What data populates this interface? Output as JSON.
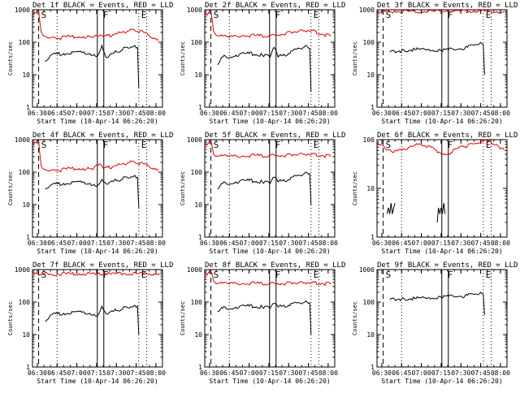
{
  "chart_data": [
    {
      "type": "line",
      "title": "Det 1f BLACK = Events, RED = LLD",
      "xlabel": "Start Time (10-Apr-14 06:26:20)",
      "ylabel": "Counts/sec",
      "y_scale": "log",
      "ylim": [
        1,
        1000
      ],
      "xticks": [
        "06:30",
        "06:45",
        "07:00",
        "07:15",
        "07:30",
        "07:45",
        "08:00"
      ],
      "xlim": [
        "06:26:20",
        "08:05:00"
      ],
      "grid": false,
      "legend": "none",
      "markers": [
        {
          "label": "S",
          "time": "06:31"
        },
        {
          "label": "F",
          "time": "07:18"
        },
        {
          "label": "E",
          "time": "07:47"
        }
      ],
      "series": [
        {
          "name": "LLD",
          "color": "#dd0000",
          "x": [
            "06:26:20",
            "06:29",
            "06:31",
            "06:33",
            "06:36",
            "06:45",
            "06:55",
            "07:05",
            "07:12",
            "07:17",
            "07:20",
            "07:28",
            "07:40",
            "07:48",
            "07:55",
            "08:02"
          ],
          "values": [
            700,
            800,
            900,
            200,
            150,
            130,
            150,
            150,
            140,
            160,
            150,
            170,
            230,
            220,
            160,
            120
          ]
        },
        {
          "name": "Events",
          "color": "#000000",
          "x": [
            "06:36",
            "06:40",
            "06:50",
            "07:00",
            "07:10",
            "07:16",
            "07:19",
            "07:22",
            "07:30",
            "07:38",
            "07:44",
            "07:46",
            "07:47"
          ],
          "values": [
            25,
            40,
            45,
            50,
            45,
            40,
            80,
            35,
            50,
            70,
            80,
            70,
            4
          ]
        }
      ]
    },
    {
      "type": "line",
      "title": "Det 2f BLACK = Events, RED = LLD",
      "xlabel": "Start Time (10-Apr-14 06:26:20)",
      "ylabel": "Counts/sec",
      "y_scale": "log",
      "ylim": [
        1,
        1000
      ],
      "xticks": [
        "06:30",
        "06:45",
        "07:00",
        "07:15",
        "07:30",
        "07:45",
        "08:00"
      ],
      "xlim": [
        "06:26:20",
        "08:05:00"
      ],
      "grid": false,
      "legend": "none",
      "markers": [
        {
          "label": "S",
          "time": "06:31"
        },
        {
          "label": "F",
          "time": "07:18"
        },
        {
          "label": "E",
          "time": "07:47"
        }
      ],
      "series": [
        {
          "name": "LLD",
          "color": "#dd0000",
          "x": [
            "06:26:20",
            "06:29",
            "06:31",
            "06:33",
            "06:36",
            "06:45",
            "06:55",
            "07:05",
            "07:12",
            "07:17",
            "07:20",
            "07:28",
            "07:40",
            "07:48",
            "07:55",
            "08:02"
          ],
          "values": [
            700,
            800,
            900,
            220,
            160,
            140,
            160,
            160,
            150,
            170,
            160,
            190,
            240,
            230,
            180,
            150
          ]
        },
        {
          "name": "Events",
          "color": "#000000",
          "x": [
            "06:36",
            "06:40",
            "06:50",
            "07:00",
            "07:10",
            "07:16",
            "07:19",
            "07:22",
            "07:30",
            "07:38",
            "07:44",
            "07:46",
            "07:47"
          ],
          "values": [
            20,
            35,
            40,
            45,
            40,
            35,
            70,
            35,
            45,
            65,
            75,
            65,
            3
          ]
        }
      ]
    },
    {
      "type": "line",
      "title": "Det 3f BLACK = Events, RED = LLD",
      "xlabel": "Start Time (10-Apr-14 06:26:20)",
      "ylabel": "Counts/sec",
      "y_scale": "log",
      "ylim": [
        1,
        1000
      ],
      "xticks": [
        "06:30",
        "06:45",
        "07:00",
        "07:15",
        "07:30",
        "07:45",
        "08:00"
      ],
      "xlim": [
        "06:26:20",
        "08:05:00"
      ],
      "grid": false,
      "legend": "none",
      "markers": [
        {
          "label": "S",
          "time": "06:31"
        },
        {
          "label": "F",
          "time": "07:18"
        },
        {
          "label": "E",
          "time": "07:47"
        }
      ],
      "series": [
        {
          "name": "LLD",
          "color": "#dd0000",
          "x": [
            "06:26:20",
            "06:30",
            "06:40",
            "06:50",
            "07:00",
            "07:10",
            "07:20",
            "07:30",
            "07:40",
            "07:50",
            "08:00",
            "08:03"
          ],
          "values": [
            900,
            850,
            900,
            880,
            900,
            890,
            910,
            900,
            920,
            900,
            890,
            880
          ]
        },
        {
          "name": "Events",
          "color": "#000000",
          "x": [
            "06:36",
            "06:45",
            "06:55",
            "07:05",
            "07:15",
            "07:18",
            "07:25",
            "07:35",
            "07:44",
            "07:47",
            "07:48"
          ],
          "values": [
            50,
            55,
            60,
            60,
            55,
            60,
            58,
            70,
            90,
            85,
            10
          ]
        }
      ]
    },
    {
      "type": "line",
      "title": "Det 4f BLACK = Events, RED = LLD",
      "xlabel": "Start Time (10-Apr-14 06:26:20)",
      "ylabel": "Counts/sec",
      "y_scale": "log",
      "ylim": [
        1,
        1000
      ],
      "xticks": [
        "06:30",
        "06:45",
        "07:00",
        "07:15",
        "07:30",
        "07:45",
        "08:00"
      ],
      "xlim": [
        "06:26:20",
        "08:05:00"
      ],
      "grid": false,
      "legend": "none",
      "markers": [
        {
          "label": "S",
          "time": "06:31"
        },
        {
          "label": "F",
          "time": "07:18"
        },
        {
          "label": "E",
          "time": "07:47"
        }
      ],
      "series": [
        {
          "name": "LLD",
          "color": "#dd0000",
          "x": [
            "06:26:20",
            "06:29",
            "06:31",
            "06:33",
            "06:36",
            "06:45",
            "06:55",
            "07:05",
            "07:12",
            "07:17",
            "07:20",
            "07:28",
            "07:40",
            "07:48",
            "07:55",
            "08:02"
          ],
          "values": [
            700,
            800,
            900,
            150,
            120,
            110,
            130,
            130,
            120,
            180,
            130,
            150,
            200,
            190,
            150,
            120
          ]
        },
        {
          "name": "Events",
          "color": "#000000",
          "x": [
            "06:36",
            "06:40",
            "06:50",
            "07:00",
            "07:10",
            "07:16",
            "07:19",
            "07:22",
            "07:30",
            "07:38",
            "07:44",
            "07:46",
            "07:47"
          ],
          "values": [
            30,
            40,
            45,
            50,
            45,
            40,
            60,
            45,
            55,
            70,
            80,
            70,
            8
          ]
        }
      ]
    },
    {
      "type": "line",
      "title": "Det 5f BLACK = Events, RED = LLD",
      "xlabel": "Start Time (10-Apr-14 06:26:20)",
      "ylabel": "Counts/sec",
      "y_scale": "log",
      "ylim": [
        1,
        1000
      ],
      "xticks": [
        "06:30",
        "06:45",
        "07:00",
        "07:15",
        "07:30",
        "07:45",
        "08:00"
      ],
      "xlim": [
        "06:26:20",
        "08:05:00"
      ],
      "grid": false,
      "legend": "none",
      "markers": [
        {
          "label": "S",
          "time": "06:31"
        },
        {
          "label": "F",
          "time": "07:18"
        },
        {
          "label": "E",
          "time": "07:47"
        }
      ],
      "series": [
        {
          "name": "LLD",
          "color": "#dd0000",
          "x": [
            "06:26:20",
            "06:29",
            "06:31",
            "06:33",
            "06:36",
            "06:45",
            "06:55",
            "07:05",
            "07:12",
            "07:17",
            "07:20",
            "07:28",
            "07:40",
            "07:48",
            "07:55",
            "08:02"
          ],
          "values": [
            700,
            800,
            900,
            350,
            320,
            300,
            310,
            330,
            300,
            350,
            320,
            330,
            380,
            360,
            330,
            300
          ]
        },
        {
          "name": "Events",
          "color": "#000000",
          "x": [
            "06:36",
            "06:40",
            "06:50",
            "07:00",
            "07:10",
            "07:16",
            "07:19",
            "07:22",
            "07:30",
            "07:38",
            "07:44",
            "07:46",
            "07:47"
          ],
          "values": [
            30,
            45,
            50,
            55,
            50,
            45,
            70,
            50,
            60,
            80,
            95,
            90,
            10
          ]
        }
      ]
    },
    {
      "type": "line",
      "title": "Det 6f BLACK = Events, RED = LLD",
      "xlabel": "Start Time (10-Apr-14 06:26:20)",
      "ylabel": "Counts/sec",
      "y_scale": "log",
      "ylim": [
        1,
        100
      ],
      "xticks": [
        "06:30",
        "06:45",
        "07:00",
        "07:15",
        "07:30",
        "07:45",
        "08:00"
      ],
      "xlim": [
        "06:26:20",
        "08:05:00"
      ],
      "grid": false,
      "legend": "none",
      "markers": [
        {
          "label": "S",
          "time": "06:31"
        },
        {
          "label": "F",
          "time": "07:18"
        },
        {
          "label": "E",
          "time": "07:47"
        }
      ],
      "series": [
        {
          "name": "LLD",
          "color": "#dd0000",
          "x": [
            "06:26:20",
            "06:32",
            "06:38",
            "06:45",
            "06:52",
            "07:00",
            "07:07",
            "07:14",
            "07:20",
            "07:27",
            "07:35",
            "07:43",
            "07:50",
            "07:57",
            "08:03"
          ],
          "values": [
            90,
            70,
            55,
            60,
            75,
            80,
            70,
            55,
            50,
            65,
            75,
            85,
            95,
            80,
            60
          ]
        },
        {
          "name": "Events",
          "color": "#000000",
          "x": [
            "06:34",
            "06:35",
            "06:36",
            "06:37",
            "06:38",
            "06:39",
            "06:40"
          ],
          "values": [
            3,
            4,
            3,
            5,
            3,
            4,
            5
          ]
        },
        {
          "name": "Events",
          "color": "#000000",
          "x": [
            "07:12",
            "07:13",
            "07:14",
            "07:15",
            "07:16",
            "07:17",
            "07:18"
          ],
          "values": [
            2,
            4,
            3,
            4,
            3,
            5,
            3
          ]
        }
      ]
    },
    {
      "type": "line",
      "title": "Det 7f BLACK = Events, RED = LLD",
      "xlabel": "Start Time (10-Apr-14 06:26:20)",
      "ylabel": "Counts/sec",
      "y_scale": "log",
      "ylim": [
        1,
        1000
      ],
      "xticks": [
        "06:30",
        "06:45",
        "07:00",
        "07:15",
        "07:30",
        "07:45",
        "08:00"
      ],
      "xlim": [
        "06:26:20",
        "08:05:00"
      ],
      "grid": false,
      "legend": "none",
      "markers": [
        {
          "label": "S",
          "time": "06:31"
        },
        {
          "label": "F",
          "time": "07:18"
        },
        {
          "label": "E",
          "time": "07:47"
        }
      ],
      "series": [
        {
          "name": "LLD",
          "color": "#dd0000",
          "x": [
            "06:26:20",
            "06:35",
            "06:45",
            "06:55",
            "07:05",
            "07:15",
            "07:25",
            "07:35",
            "07:45",
            "07:55",
            "08:03"
          ],
          "values": [
            700,
            750,
            720,
            740,
            750,
            730,
            760,
            740,
            760,
            750,
            740
          ]
        },
        {
          "name": "Events",
          "color": "#000000",
          "x": [
            "06:36",
            "06:40",
            "06:50",
            "07:00",
            "07:10",
            "07:16",
            "07:19",
            "07:22",
            "07:30",
            "07:38",
            "07:44",
            "07:46",
            "07:47"
          ],
          "values": [
            25,
            40,
            45,
            50,
            45,
            40,
            75,
            45,
            55,
            70,
            80,
            75,
            10
          ]
        }
      ]
    },
    {
      "type": "line",
      "title": "Det 8f BLACK = Events, RED = LLD",
      "xlabel": "Start Time (10-Apr-14 06:26:20)",
      "ylabel": "Counts/sec",
      "y_scale": "log",
      "ylim": [
        1,
        1000
      ],
      "xticks": [
        "06:30",
        "06:45",
        "07:00",
        "07:15",
        "07:30",
        "07:45",
        "08:00"
      ],
      "xlim": [
        "06:26:20",
        "08:05:00"
      ],
      "grid": false,
      "legend": "none",
      "markers": [
        {
          "label": "S",
          "time": "06:31"
        },
        {
          "label": "F",
          "time": "07:18"
        },
        {
          "label": "E",
          "time": "07:47"
        }
      ],
      "series": [
        {
          "name": "LLD",
          "color": "#dd0000",
          "x": [
            "06:26:20",
            "06:29",
            "06:31",
            "06:33",
            "06:36",
            "06:45",
            "06:55",
            "07:05",
            "07:12",
            "07:17",
            "07:20",
            "07:28",
            "07:40",
            "07:48",
            "07:55",
            "08:02"
          ],
          "values": [
            700,
            800,
            900,
            450,
            380,
            360,
            370,
            380,
            350,
            400,
            360,
            380,
            420,
            400,
            380,
            350
          ]
        },
        {
          "name": "Events",
          "color": "#000000",
          "x": [
            "06:36",
            "06:40",
            "06:50",
            "07:00",
            "07:10",
            "07:16",
            "07:19",
            "07:22",
            "07:30",
            "07:38",
            "07:44",
            "07:46",
            "07:47"
          ],
          "values": [
            50,
            65,
            70,
            75,
            70,
            65,
            90,
            70,
            80,
            95,
            100,
            95,
            10
          ]
        }
      ]
    },
    {
      "type": "line",
      "title": "Det 9f BLACK = Events, RED = LLD",
      "xlabel": "Start Time (10-Apr-14 06:26:20)",
      "ylabel": "Counts/sec",
      "y_scale": "log",
      "ylim": [
        1,
        1000
      ],
      "xticks": [
        "06:30",
        "06:45",
        "07:00",
        "07:15",
        "07:30",
        "07:45",
        "08:00"
      ],
      "xlim": [
        "06:26:20",
        "08:05:00"
      ],
      "grid": false,
      "legend": "none",
      "markers": [
        {
          "label": "S",
          "time": "06:31"
        },
        {
          "label": "F",
          "time": "07:18"
        },
        {
          "label": "E",
          "time": "07:47"
        }
      ],
      "series": [
        {
          "name": "Events",
          "color": "#000000",
          "x": [
            "06:36",
            "06:45",
            "06:55",
            "07:05",
            "07:15",
            "07:18",
            "07:25",
            "07:35",
            "07:44",
            "07:47",
            "07:48"
          ],
          "values": [
            120,
            125,
            130,
            135,
            140,
            150,
            145,
            160,
            180,
            175,
            40
          ]
        }
      ]
    }
  ]
}
